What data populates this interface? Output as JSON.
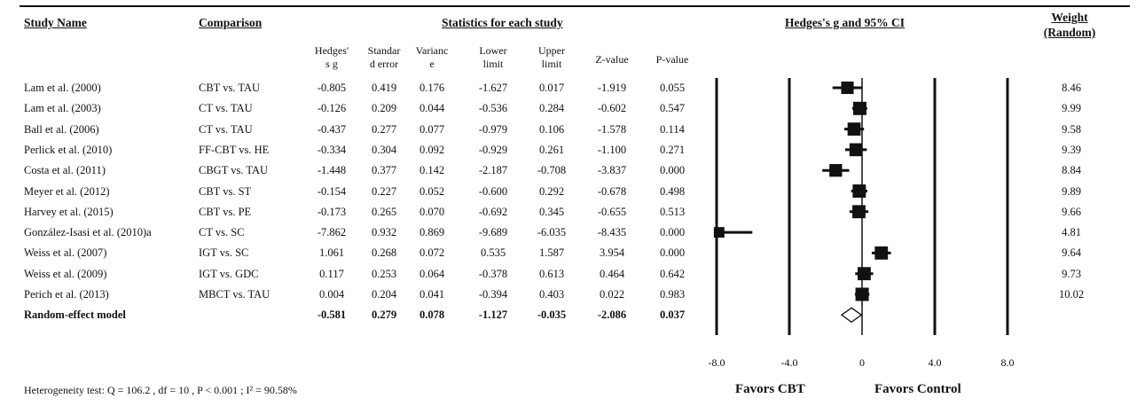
{
  "headers": {
    "study": "Study Name",
    "comparison": "Comparison",
    "stats": "Statistics for each study",
    "ci": "Hedges's g and 95% CI",
    "weight_line1": "Weight",
    "weight_line2": "(Random)"
  },
  "subheaders": {
    "g": [
      "Hedges'",
      "s g"
    ],
    "se": [
      "Standar",
      "d error"
    ],
    "var": [
      "Varianc",
      "e"
    ],
    "lower": [
      "Lower",
      "limit"
    ],
    "upper": [
      "Upper",
      "limit"
    ],
    "z": [
      "Z-value"
    ],
    "p": [
      "P-value"
    ]
  },
  "rows": [
    {
      "study": "Lam et al. (2000)",
      "comparison": "CBT vs. TAU",
      "g": "-0.805",
      "se": "0.419",
      "var": "0.176",
      "lower": "-1.627",
      "upper": "0.017",
      "z": "-1.919",
      "p": "0.055",
      "weight": "8.46"
    },
    {
      "study": "Lam et al. (2003)",
      "comparison": "CT vs. TAU",
      "g": "-0.126",
      "se": "0.209",
      "var": "0.044",
      "lower": "-0.536",
      "upper": "0.284",
      "z": "-0.602",
      "p": "0.547",
      "weight": "9.99"
    },
    {
      "study": "Ball et al. (2006)",
      "comparison": "CT vs. TAU",
      "g": "-0.437",
      "se": "0.277",
      "var": "0.077",
      "lower": "-0.979",
      "upper": "0.106",
      "z": "-1.578",
      "p": "0.114",
      "weight": "9.58"
    },
    {
      "study": "Perlick et al. (2010)",
      "comparison": "FF-CBT vs. HE",
      "g": "-0.334",
      "se": "0.304",
      "var": "0.092",
      "lower": "-0.929",
      "upper": "0.261",
      "z": "-1.100",
      "p": "0.271",
      "weight": "9.39"
    },
    {
      "study": "Costa et al. (2011)",
      "comparison": "CBGT vs. TAU",
      "g": "-1.448",
      "se": "0.377",
      "var": "0.142",
      "lower": "-2.187",
      "upper": "-0.708",
      "z": "-3.837",
      "p": "0.000",
      "weight": "8.84"
    },
    {
      "study": "Meyer et al. (2012)",
      "comparison": "CBT vs. ST",
      "g": "-0.154",
      "se": "0.227",
      "var": "0.052",
      "lower": "-0.600",
      "upper": "0.292",
      "z": "-0.678",
      "p": "0.498",
      "weight": "9.89"
    },
    {
      "study": "Harvey et al. (2015)",
      "comparison": "CBT vs. PE",
      "g": "-0.173",
      "se": "0.265",
      "var": "0.070",
      "lower": "-0.692",
      "upper": "0.345",
      "z": "-0.655",
      "p": "0.513",
      "weight": "9.66"
    },
    {
      "study": "González-Isasi et al. (2010)a",
      "comparison": "CT vs. SC",
      "g": "-7.862",
      "se": "0.932",
      "var": "0.869",
      "lower": "-9.689",
      "upper": "-6.035",
      "z": "-8.435",
      "p": "0.000",
      "weight": "4.81"
    },
    {
      "study": "Weiss et al. (2007)",
      "comparison": "IGT vs. SC",
      "g": "1.061",
      "se": "0.268",
      "var": "0.072",
      "lower": "0.535",
      "upper": "1.587",
      "z": "3.954",
      "p": "0.000",
      "weight": "9.64"
    },
    {
      "study": "Weiss et al. (2009)",
      "comparison": "IGT vs. GDC",
      "g": "0.117",
      "se": "0.253",
      "var": "0.064",
      "lower": "-0.378",
      "upper": "0.613",
      "z": "0.464",
      "p": "0.642",
      "weight": "9.73"
    },
    {
      "study": "Perich et al. (2013)",
      "comparison": "MBCT vs. TAU",
      "g": "0.004",
      "se": "0.204",
      "var": "0.041",
      "lower": "-0.394",
      "upper": "0.403",
      "z": "0.022",
      "p": "0.983",
      "weight": "10.02"
    }
  ],
  "summary": {
    "study": "Random-effect model",
    "g": "-0.581",
    "se": "0.279",
    "var": "0.078",
    "lower": "-1.127",
    "upper": "-0.035",
    "z": "-2.086",
    "p": "0.037"
  },
  "footer": {
    "heterogeneity": "Heterogeneity test: Q = 106.2 , df = 10 , P < 0.001 ; I² = 90.58%",
    "favors_left": "Favors CBT",
    "favors_right": "Favors Control"
  },
  "chart_data": {
    "type": "forest",
    "title": "Hedges's g and 95% CI",
    "xlim": [
      -8.0,
      8.0
    ],
    "xticks": [
      -8.0,
      -4.0,
      0,
      4.0,
      8.0
    ],
    "xtick_labels": [
      "-8.0",
      "-4.0",
      "0",
      "4.0",
      "8.0"
    ],
    "grid_lines_at": [
      -8.0,
      -4.0,
      4.0,
      8.0
    ],
    "studies": [
      {
        "label": "Lam et al. (2000)",
        "g": -0.805,
        "lower": -1.627,
        "upper": 0.017,
        "weight": 8.46
      },
      {
        "label": "Lam et al. (2003)",
        "g": -0.126,
        "lower": -0.536,
        "upper": 0.284,
        "weight": 9.99
      },
      {
        "label": "Ball et al. (2006)",
        "g": -0.437,
        "lower": -0.979,
        "upper": 0.106,
        "weight": 9.58
      },
      {
        "label": "Perlick et al. (2010)",
        "g": -0.334,
        "lower": -0.929,
        "upper": 0.261,
        "weight": 9.39
      },
      {
        "label": "Costa et al. (2011)",
        "g": -1.448,
        "lower": -2.187,
        "upper": -0.708,
        "weight": 8.84
      },
      {
        "label": "Meyer et al. (2012)",
        "g": -0.154,
        "lower": -0.6,
        "upper": 0.292,
        "weight": 9.89
      },
      {
        "label": "Harvey et al. (2015)",
        "g": -0.173,
        "lower": -0.692,
        "upper": 0.345,
        "weight": 9.66
      },
      {
        "label": "González-Isasi et al. (2010)a",
        "g": -7.862,
        "lower": -9.689,
        "upper": -6.035,
        "weight": 4.81
      },
      {
        "label": "Weiss et al. (2007)",
        "g": 1.061,
        "lower": 0.535,
        "upper": 1.587,
        "weight": 9.64
      },
      {
        "label": "Weiss et al. (2009)",
        "g": 0.117,
        "lower": -0.378,
        "upper": 0.613,
        "weight": 9.73
      },
      {
        "label": "Perich et al. (2013)",
        "g": 0.004,
        "lower": -0.394,
        "upper": 0.403,
        "weight": 10.02
      }
    ],
    "summary": {
      "label": "Random-effect model",
      "g": -0.581,
      "lower": -1.127,
      "upper": -0.035
    },
    "favors_left": "Favors CBT",
    "favors_right": "Favors Control"
  }
}
